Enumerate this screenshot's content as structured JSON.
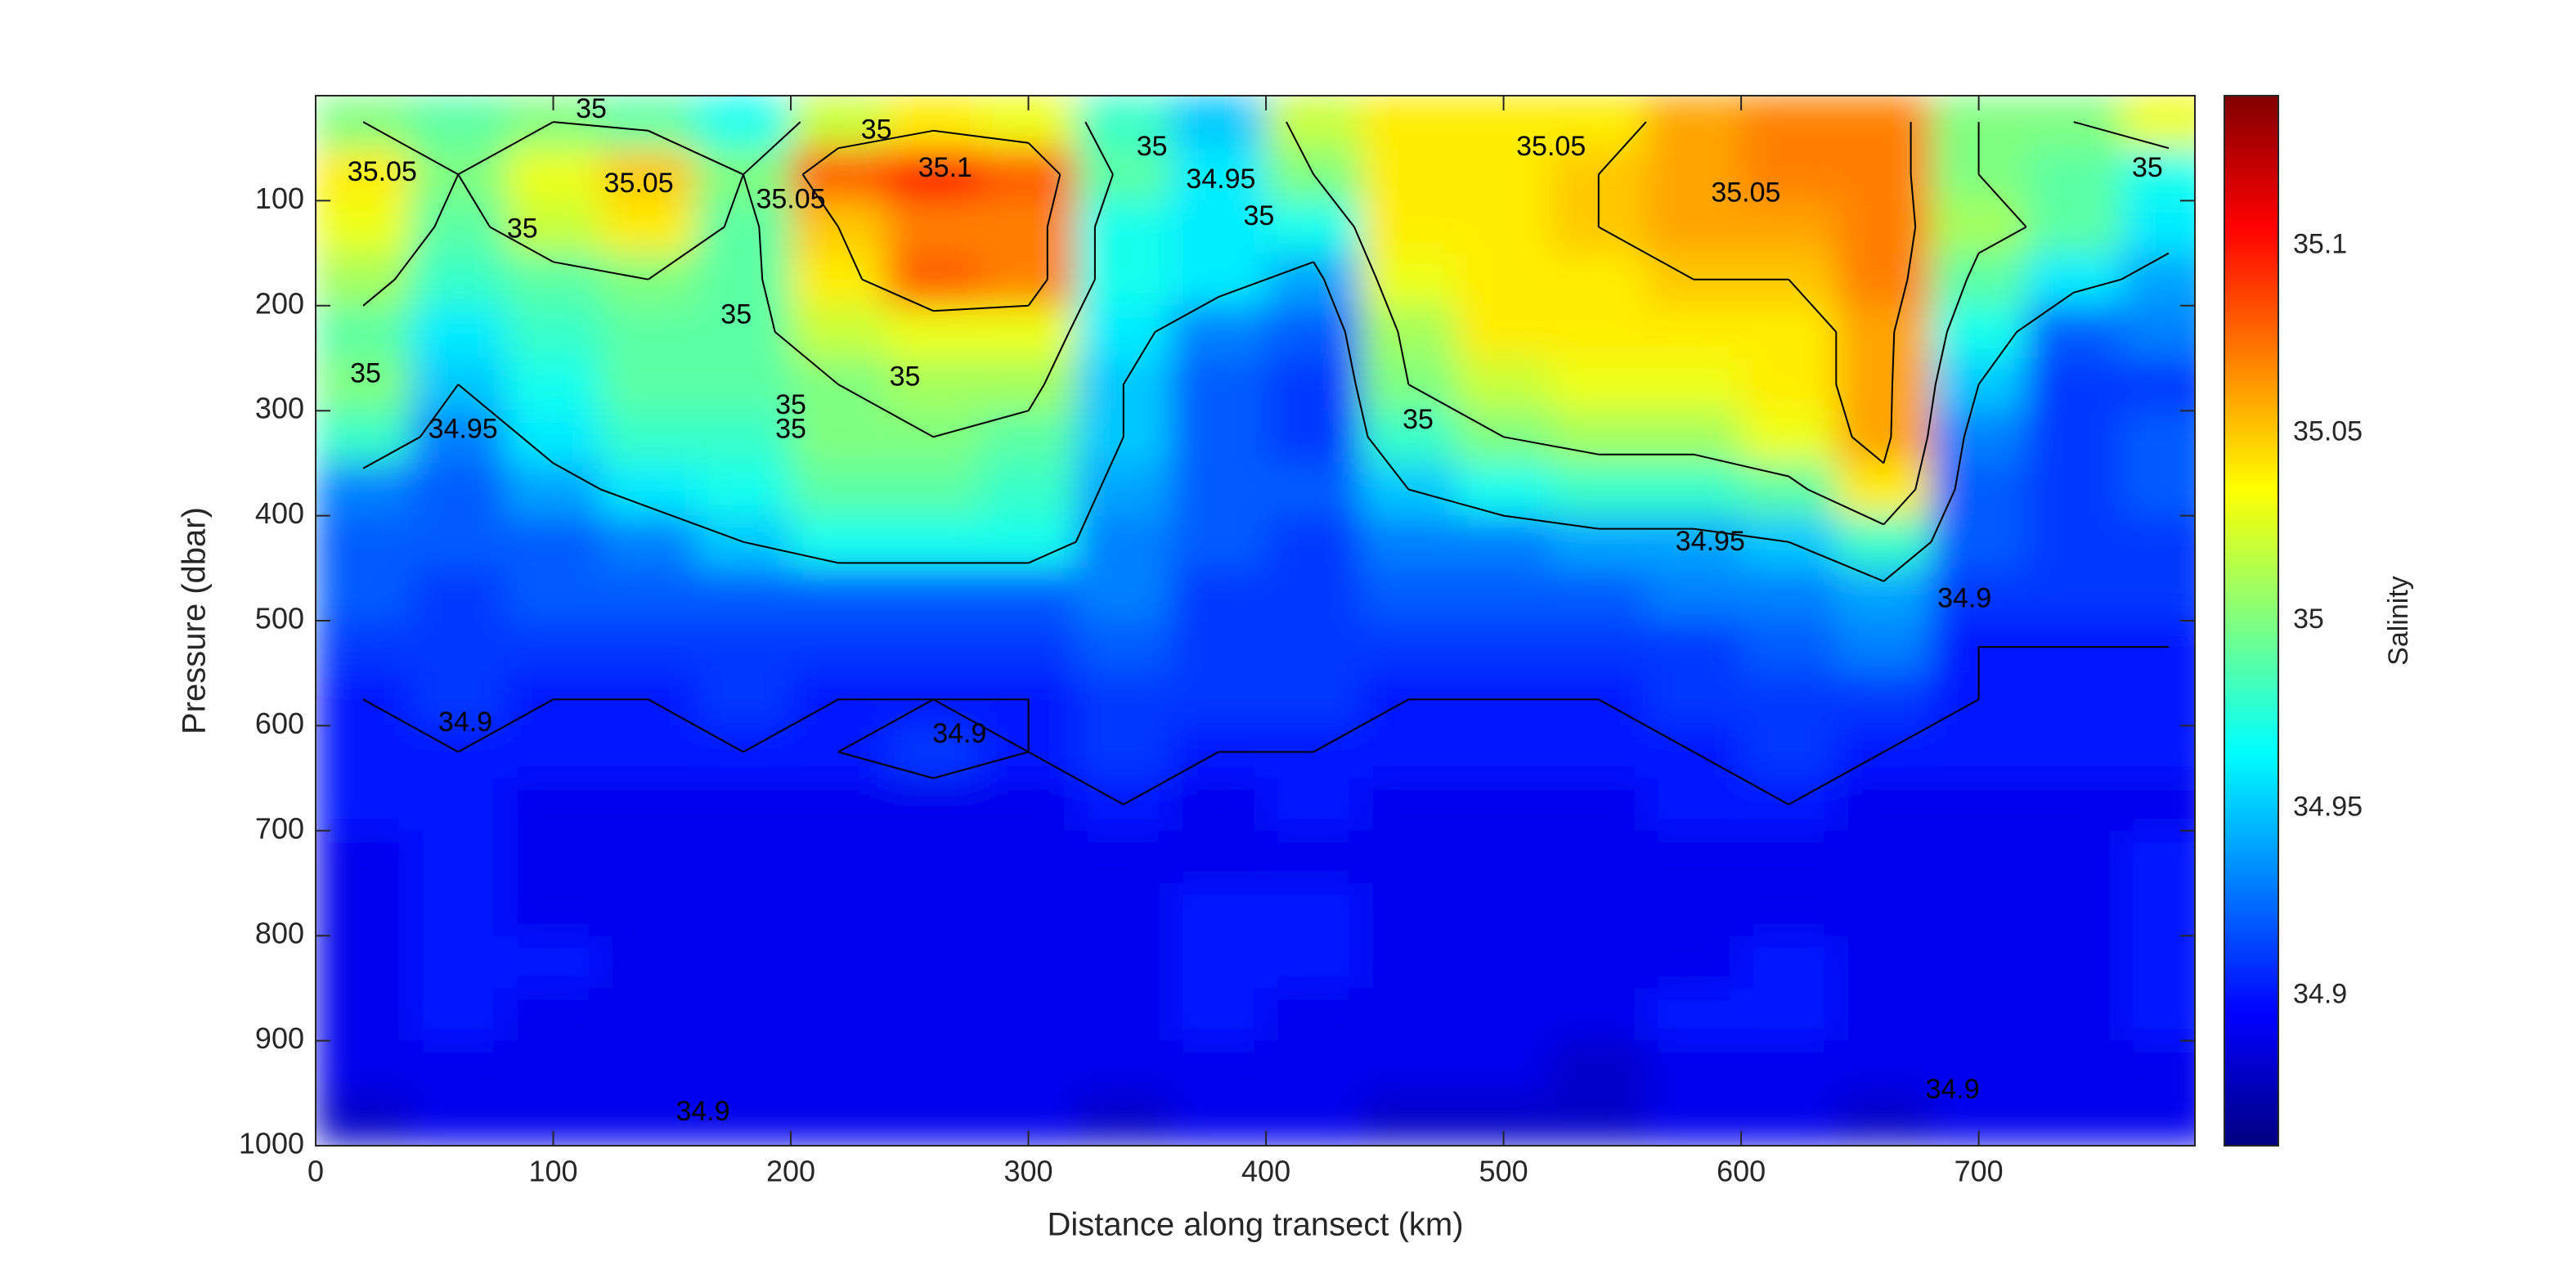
{
  "chart_data": {
    "type": "contour",
    "xlabel": "Distance along transect (km)",
    "ylabel": "Pressure (dbar)",
    "colorbar_label": "Salinity",
    "colormap": "jet",
    "xlim": [
      0,
      791
    ],
    "xticks": [
      0,
      100,
      200,
      300,
      400,
      500,
      600,
      700
    ],
    "ylim": [
      0,
      1000
    ],
    "yticks": [
      100,
      200,
      300,
      400,
      500,
      600,
      700,
      800,
      900,
      1000
    ],
    "y_reversed": true,
    "clim": [
      34.86,
      35.14
    ],
    "cticks": [
      34.9,
      34.95,
      35,
      35.05,
      35.1
    ],
    "contour_levels": [
      34.9,
      34.95,
      35,
      35.05,
      35.1
    ],
    "x": [
      20,
      60,
      100,
      140,
      180,
      220,
      260,
      300,
      340,
      380,
      420,
      460,
      500,
      540,
      580,
      620,
      660,
      700,
      740,
      780
    ],
    "y": [
      25,
      75,
      125,
      175,
      225,
      275,
      325,
      375,
      425,
      475,
      525,
      575,
      625,
      675,
      725,
      775,
      825,
      875,
      925,
      975
    ],
    "z": [
      [
        35.0,
        34.99,
        35.0,
        34.99,
        34.97,
        35.02,
        35.04,
        35.03,
        34.98,
        34.95,
        35.02,
        35.04,
        35.04,
        35.04,
        35.06,
        35.07,
        35.07,
        35.0,
        35.0,
        35.03
      ],
      [
        35.04,
        35.0,
        35.03,
        35.05,
        35.0,
        35.08,
        35.1,
        35.08,
        34.99,
        34.96,
        35.0,
        35.04,
        35.04,
        35.05,
        35.06,
        35.07,
        35.07,
        35.0,
        34.99,
        34.97
      ],
      [
        35.03,
        34.99,
        35.02,
        35.04,
        34.99,
        35.05,
        35.07,
        35.07,
        34.97,
        34.96,
        34.97,
        35.04,
        35.04,
        35.05,
        35.06,
        35.06,
        35.07,
        35.01,
        34.99,
        34.96
      ],
      [
        35.01,
        34.98,
        34.99,
        35.0,
        34.99,
        35.04,
        35.08,
        35.07,
        34.97,
        34.96,
        34.94,
        35.03,
        35.04,
        35.04,
        35.05,
        35.05,
        35.07,
        34.99,
        34.96,
        34.94
      ],
      [
        34.99,
        34.96,
        34.98,
        34.99,
        34.99,
        35.02,
        35.03,
        35.03,
        34.96,
        34.93,
        34.92,
        35.01,
        35.04,
        35.04,
        35.04,
        35.04,
        35.06,
        34.97,
        34.92,
        34.93
      ],
      [
        35.0,
        34.95,
        34.97,
        34.99,
        34.99,
        35.0,
        35.01,
        35.01,
        34.95,
        34.92,
        34.91,
        35.0,
        35.02,
        35.03,
        35.03,
        35.04,
        35.06,
        34.95,
        34.91,
        34.91
      ],
      [
        34.98,
        34.93,
        34.96,
        34.98,
        34.98,
        35.0,
        35.0,
        34.99,
        34.95,
        34.92,
        34.91,
        34.98,
        35.0,
        35.01,
        35.01,
        35.03,
        35.06,
        34.93,
        34.91,
        34.92
      ],
      [
        34.93,
        34.92,
        34.94,
        34.96,
        34.97,
        34.99,
        34.99,
        34.98,
        34.94,
        34.92,
        34.92,
        34.95,
        34.97,
        34.98,
        34.98,
        34.99,
        35.04,
        34.92,
        34.91,
        34.92
      ],
      [
        34.92,
        34.92,
        34.92,
        34.93,
        34.95,
        34.97,
        34.97,
        34.97,
        34.93,
        34.92,
        34.91,
        34.93,
        34.93,
        34.94,
        34.94,
        34.95,
        34.98,
        34.92,
        34.91,
        34.91
      ],
      [
        34.92,
        34.91,
        34.92,
        34.92,
        34.92,
        34.92,
        34.92,
        34.92,
        34.93,
        34.91,
        34.91,
        34.92,
        34.92,
        34.92,
        34.93,
        34.93,
        34.94,
        34.91,
        34.91,
        34.91
      ],
      [
        34.91,
        34.91,
        34.91,
        34.91,
        34.91,
        34.91,
        34.91,
        34.91,
        34.92,
        34.91,
        34.91,
        34.91,
        34.91,
        34.91,
        34.91,
        34.92,
        34.93,
        34.9,
        34.9,
        34.9
      ],
      [
        34.9,
        34.91,
        34.9,
        34.9,
        34.91,
        34.9,
        34.9,
        34.9,
        34.91,
        34.91,
        34.91,
        34.9,
        34.9,
        34.9,
        34.91,
        34.91,
        34.91,
        34.9,
        34.9,
        34.9
      ],
      [
        34.9,
        34.9,
        34.9,
        34.9,
        34.9,
        34.9,
        34.91,
        34.9,
        34.91,
        34.9,
        34.9,
        34.9,
        34.9,
        34.9,
        34.9,
        34.91,
        34.9,
        34.9,
        34.9,
        34.9
      ],
      [
        34.9,
        34.9,
        34.89,
        34.89,
        34.89,
        34.89,
        34.89,
        34.89,
        34.9,
        34.89,
        34.9,
        34.89,
        34.89,
        34.89,
        34.9,
        34.9,
        34.89,
        34.89,
        34.89,
        34.89
      ],
      [
        34.89,
        34.9,
        34.89,
        34.89,
        34.89,
        34.89,
        34.89,
        34.89,
        34.89,
        34.89,
        34.89,
        34.89,
        34.89,
        34.89,
        34.89,
        34.89,
        34.89,
        34.89,
        34.89,
        34.9
      ],
      [
        34.89,
        34.9,
        34.89,
        34.89,
        34.89,
        34.89,
        34.89,
        34.89,
        34.89,
        34.9,
        34.9,
        34.89,
        34.89,
        34.89,
        34.89,
        34.89,
        34.89,
        34.89,
        34.89,
        34.9
      ],
      [
        34.89,
        34.9,
        34.9,
        34.89,
        34.89,
        34.89,
        34.89,
        34.89,
        34.89,
        34.9,
        34.9,
        34.89,
        34.89,
        34.89,
        34.89,
        34.9,
        34.89,
        34.89,
        34.89,
        34.9
      ],
      [
        34.89,
        34.9,
        34.89,
        34.89,
        34.89,
        34.89,
        34.89,
        34.89,
        34.89,
        34.9,
        34.89,
        34.89,
        34.89,
        34.89,
        34.9,
        34.9,
        34.89,
        34.89,
        34.89,
        34.9
      ],
      [
        34.89,
        34.89,
        34.89,
        34.89,
        34.89,
        34.89,
        34.89,
        34.89,
        34.89,
        34.89,
        34.89,
        34.89,
        34.89,
        34.88,
        34.89,
        34.89,
        34.89,
        34.89,
        34.89,
        34.89
      ],
      [
        34.88,
        34.89,
        34.89,
        34.89,
        34.89,
        34.89,
        34.89,
        34.89,
        34.88,
        34.89,
        34.89,
        34.88,
        34.88,
        34.88,
        34.89,
        34.89,
        34.88,
        34.89,
        34.89,
        34.89
      ]
    ],
    "contour_labels": [
      {
        "value": 35.05,
        "x": 28,
        "y": 74
      },
      {
        "value": 35,
        "x": 116,
        "y": 14
      },
      {
        "value": 35.05,
        "x": 136,
        "y": 85
      },
      {
        "value": 35.05,
        "x": 200,
        "y": 100
      },
      {
        "value": 35.1,
        "x": 265,
        "y": 70
      },
      {
        "value": 35,
        "x": 236,
        "y": 34
      },
      {
        "value": 35,
        "x": 87,
        "y": 128
      },
      {
        "value": 35,
        "x": 177,
        "y": 210
      },
      {
        "value": 35,
        "x": 248,
        "y": 269
      },
      {
        "value": 35,
        "x": 200,
        "y": 296
      },
      {
        "value": 35,
        "x": 200,
        "y": 319
      },
      {
        "value": 35,
        "x": 21,
        "y": 266
      },
      {
        "value": 34.95,
        "x": 62,
        "y": 319
      },
      {
        "value": 34.95,
        "x": 381,
        "y": 81
      },
      {
        "value": 35,
        "x": 397,
        "y": 116
      },
      {
        "value": 35,
        "x": 352,
        "y": 50
      },
      {
        "value": 35.05,
        "x": 520,
        "y": 50
      },
      {
        "value": 35.05,
        "x": 602,
        "y": 94
      },
      {
        "value": 35,
        "x": 464,
        "y": 310
      },
      {
        "value": 34.95,
        "x": 587,
        "y": 426
      },
      {
        "value": 34.9,
        "x": 694,
        "y": 480
      },
      {
        "value": 35,
        "x": 771,
        "y": 70
      },
      {
        "value": 34.9,
        "x": 63,
        "y": 598
      },
      {
        "value": 34.9,
        "x": 271,
        "y": 609
      },
      {
        "value": 34.9,
        "x": 163,
        "y": 969
      },
      {
        "value": 34.9,
        "x": 689,
        "y": 948
      }
    ]
  }
}
